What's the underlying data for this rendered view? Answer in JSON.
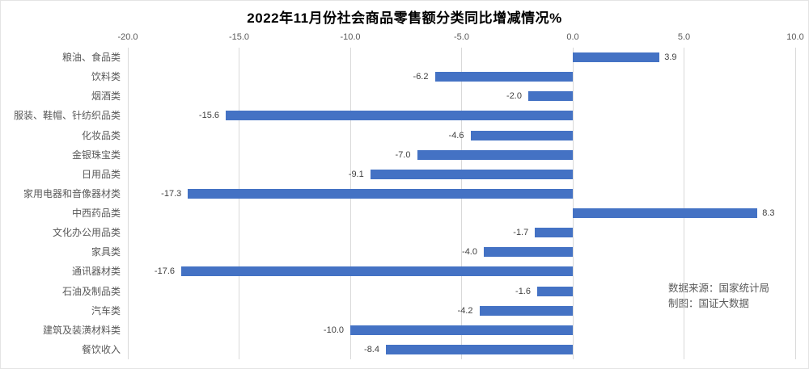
{
  "title": "2022年11月份社会商品零售额分类同比增减情况%",
  "annotation": {
    "source": "数据来源：国家统计局",
    "credit": "制图：国证大数据"
  },
  "colors": {
    "bar": "#4472C4",
    "gridline": "#D9D9D9",
    "tick_label": "#595959",
    "category_label": "#595959",
    "value_label": "#404040",
    "title": "#000000"
  },
  "chart_data": {
    "type": "bar",
    "orientation": "horizontal",
    "title": "2022年11月份社会商品零售额分类同比增减情况%",
    "categories": [
      "粮油、食品类",
      "饮料类",
      "烟酒类",
      "服装、鞋帽、针纺织品类",
      "化妆品类",
      "金银珠宝类",
      "日用品类",
      "家用电器和音像器材类",
      "中西药品类",
      "文化办公用品类",
      "家具类",
      "通讯器材类",
      "石油及制品类",
      "汽车类",
      "建筑及装潢材料类",
      "餐饮收入"
    ],
    "values": [
      3.9,
      -6.2,
      -2.0,
      -15.6,
      -4.6,
      -7.0,
      -9.1,
      -17.3,
      8.3,
      -1.7,
      -4.0,
      -17.6,
      -1.6,
      -4.2,
      -10.0,
      -8.4
    ],
    "xlim": [
      -20.0,
      10.0
    ],
    "xticks": [
      -20.0,
      -15.0,
      -10.0,
      -5.0,
      0.0,
      5.0,
      10.0
    ],
    "xtick_position": "top",
    "grid": true,
    "legend": "none",
    "value_labels": true,
    "value_label_position": "outside_end"
  }
}
